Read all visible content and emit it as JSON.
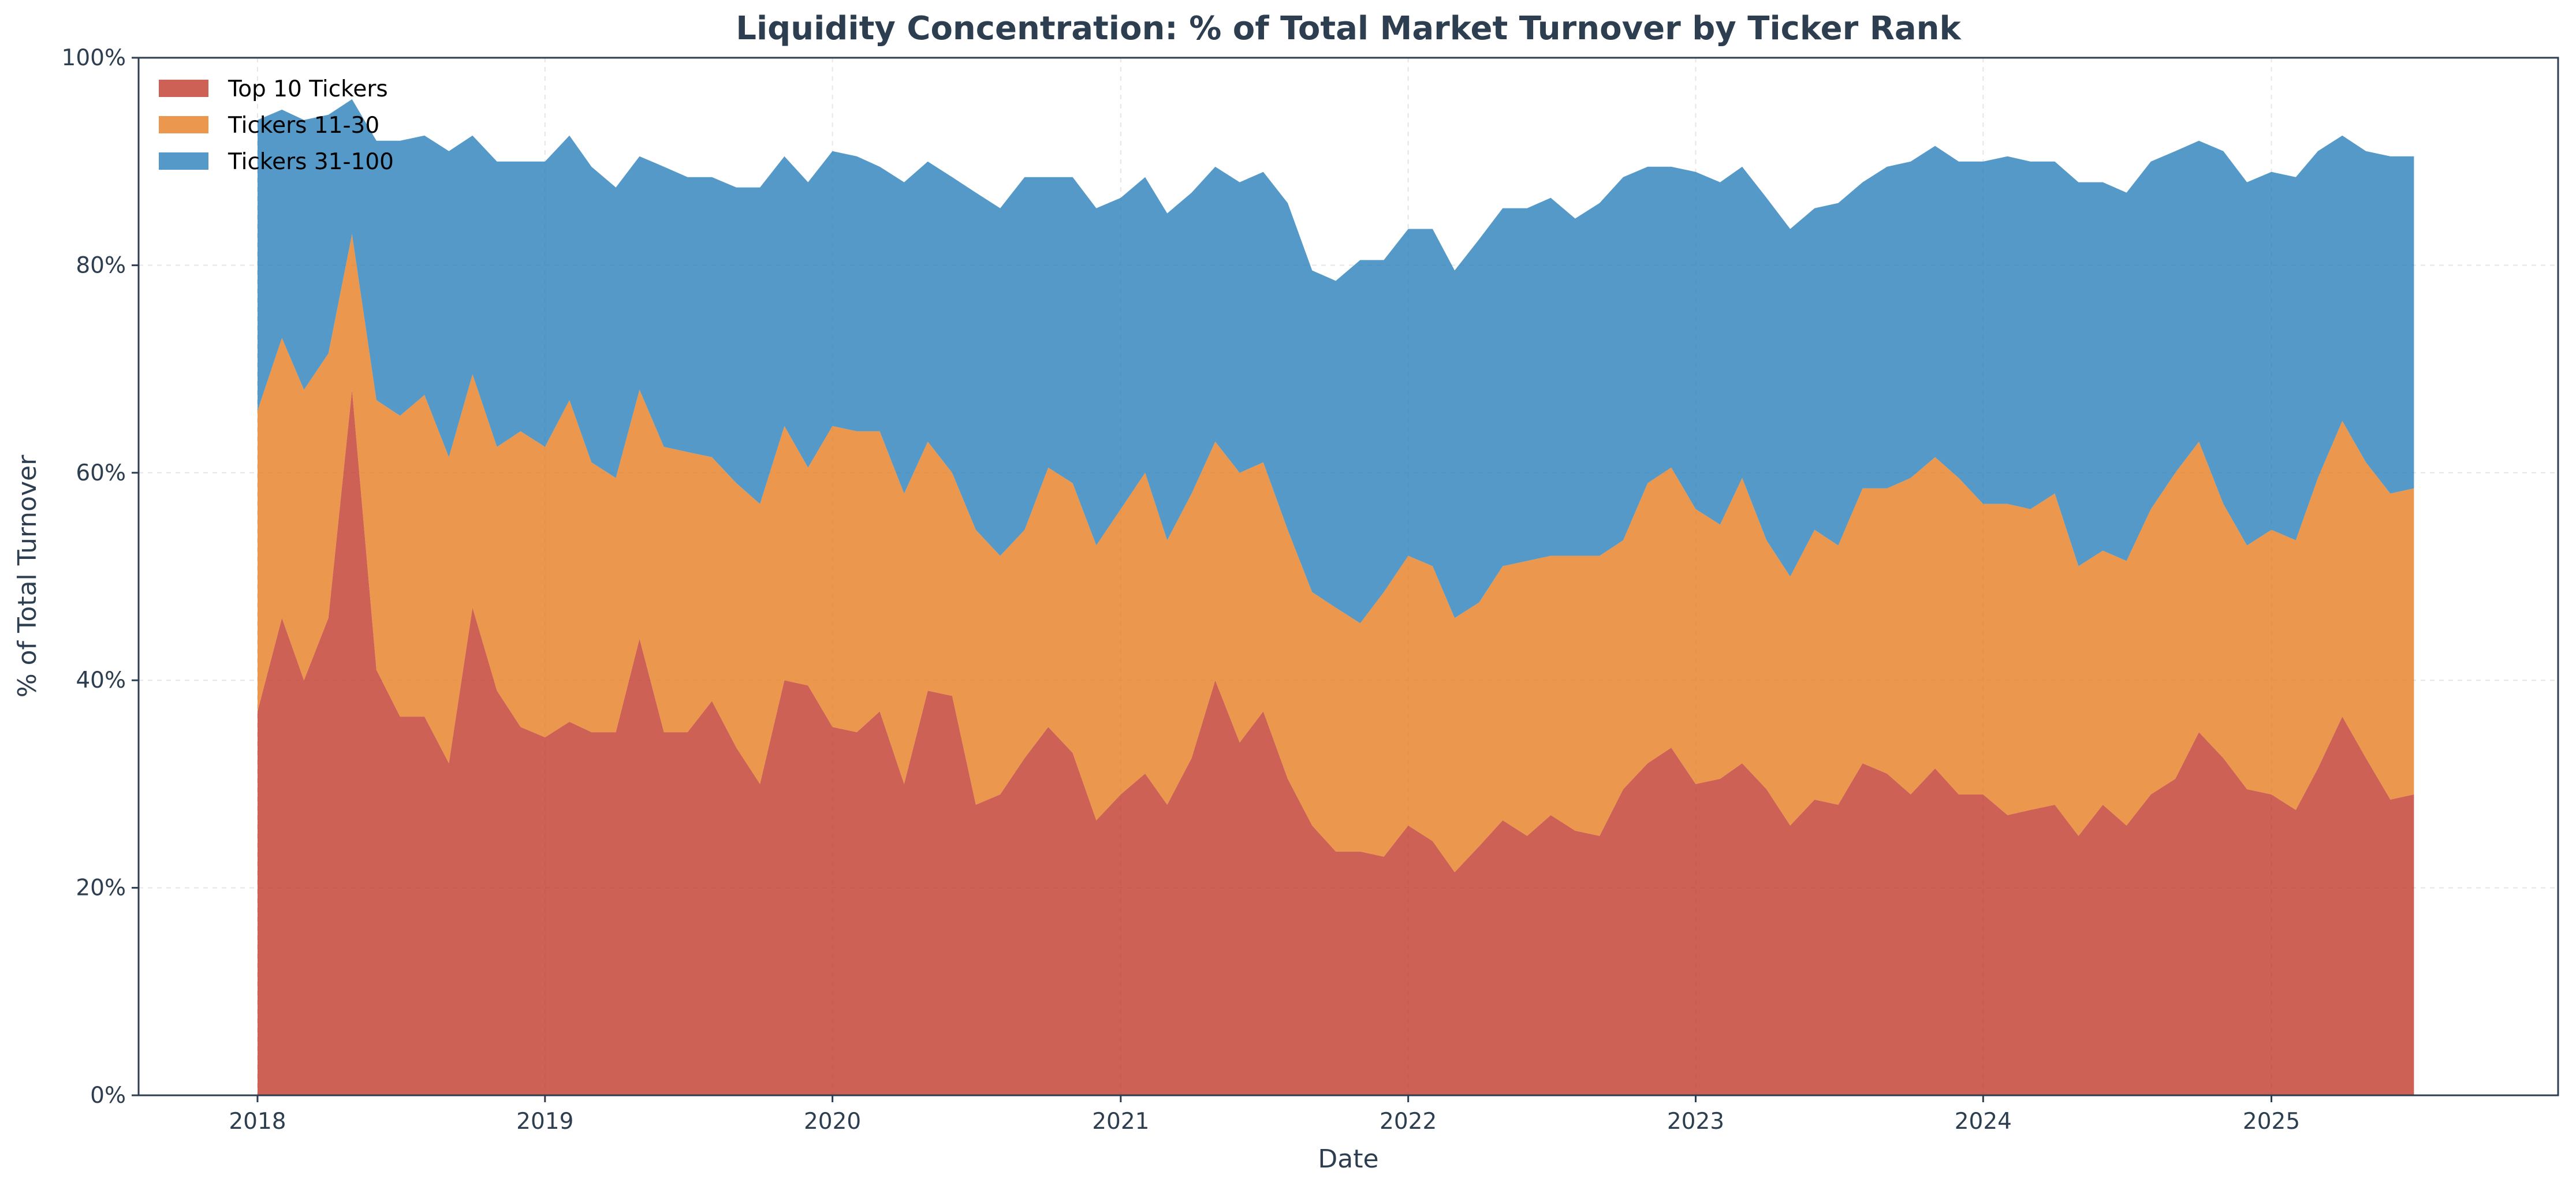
{
  "chart_data": {
    "type": "area",
    "stacked": true,
    "title": "Liquidity Concentration: % of Total Market Turnover by Ticker Rank",
    "xlabel": "Date",
    "ylabel": "% of Total Turnover",
    "ylim": [
      0,
      100
    ],
    "xlim": [
      "2017-08-03",
      "2025-12-31"
    ],
    "grid": true,
    "legend_position": "top-left",
    "x_tick_labels": [
      "2018",
      "2019",
      "2020",
      "2021",
      "2022",
      "2023",
      "2024",
      "2025"
    ],
    "y_tick_labels": [
      "0%",
      "20%",
      "40%",
      "60%",
      "80%",
      "100%"
    ],
    "x_start": "2018-01",
    "x_end": "2025-08",
    "series": [
      {
        "name": "Top 10 Tickers",
        "color": "#c0392b",
        "values": [
          37,
          46,
          40,
          46,
          68,
          41,
          36.5,
          36.5,
          32,
          47,
          39,
          35.5,
          34.5,
          36,
          35,
          35,
          44,
          35,
          35,
          38,
          33.5,
          30,
          40,
          39.5,
          35.5,
          35,
          37,
          30,
          39,
          38.5,
          28,
          29,
          32.5,
          35.5,
          33,
          26.5,
          29,
          31,
          28,
          32.5,
          40,
          34,
          37,
          30.5,
          26,
          23.5,
          23.5,
          23,
          26,
          24.5,
          21.5,
          24,
          26.5,
          25,
          27,
          25.5,
          25,
          29.5,
          32,
          33.5,
          30,
          30.5,
          32,
          29.5,
          26,
          28.5,
          28,
          32,
          31,
          29,
          31.5,
          29,
          29,
          27,
          27.5,
          28,
          25,
          28,
          26,
          29,
          30.5,
          35,
          32.5,
          29.5,
          29,
          27.5,
          31.5,
          36.5,
          32.5,
          28.5,
          29
        ]
      },
      {
        "name": "Tickers 11-30",
        "color": "#e67e22",
        "values": [
          29,
          27,
          28,
          25.5,
          15,
          26,
          29,
          31,
          29.5,
          22.5,
          23.5,
          28.5,
          28,
          31,
          26,
          24.5,
          24,
          27.5,
          27,
          23.5,
          25.5,
          27,
          24.5,
          21,
          29,
          29,
          27,
          28,
          24,
          21.5,
          26.5,
          23,
          22,
          25,
          26,
          26.5,
          27.5,
          29,
          25.5,
          25.5,
          23,
          26,
          24,
          24,
          22.5,
          23.5,
          22,
          25.5,
          26,
          26.5,
          24.5,
          23.5,
          24.5,
          26.5,
          25,
          26.5,
          27,
          24,
          27,
          27,
          26.5,
          24.5,
          27.5,
          24,
          24,
          26,
          25,
          26.5,
          27.5,
          30.5,
          30,
          30.5,
          28,
          30,
          29,
          30,
          26,
          24.5,
          25.5,
          27.5,
          29.5,
          28,
          24.5,
          23.5,
          25.5,
          26,
          28,
          28.5,
          28.5,
          29.5,
          29.5
        ]
      },
      {
        "name": "Tickers 31-100",
        "color": "#2980b9",
        "values": [
          28,
          22,
          26,
          23,
          13,
          25,
          26.5,
          25,
          29.5,
          23,
          27.5,
          26,
          27.5,
          25.5,
          28.5,
          28,
          22.5,
          27,
          26.5,
          27,
          28.5,
          30.5,
          26,
          27.5,
          26.5,
          26.5,
          25.5,
          30,
          27,
          28.5,
          32.5,
          33.5,
          34,
          28,
          29.5,
          32.5,
          30,
          28.5,
          31.5,
          29,
          26.5,
          28,
          28,
          31.5,
          31,
          31.5,
          35,
          32,
          31.5,
          32.5,
          33.5,
          35,
          34.5,
          34,
          34.5,
          32.5,
          34,
          35,
          30.5,
          29,
          32.5,
          33,
          30,
          33,
          33.5,
          31,
          33,
          29.5,
          31,
          30.5,
          30,
          30.5,
          33,
          33.5,
          33.5,
          32,
          37,
          35.5,
          35.5,
          33.5,
          31,
          29,
          34,
          35,
          34.5,
          35,
          31.5,
          27.5,
          30,
          32.5,
          32
        ]
      }
    ]
  }
}
